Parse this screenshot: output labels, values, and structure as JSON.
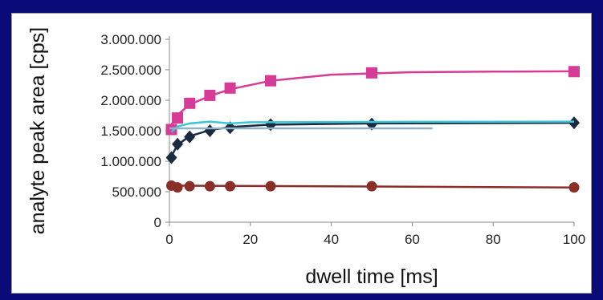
{
  "chart_data": {
    "type": "scatter",
    "title": "",
    "xlabel": "dwell time [ms]",
    "ylabel": "analyte peak area [cps]",
    "xlim": [
      0,
      100
    ],
    "ylim": [
      0,
      3000000
    ],
    "x_ticks": [
      0,
      20,
      40,
      60,
      80,
      100
    ],
    "x_tick_labels": [
      "0",
      "20",
      "40",
      "60",
      "80",
      "100"
    ],
    "y_ticks": [
      0,
      500000,
      1000000,
      1500000,
      2000000,
      2500000,
      3000000
    ],
    "y_tick_labels": [
      "0",
      "500.000",
      "1.000.000",
      "1.500.000",
      "2.000.000",
      "2.500.000",
      "3.000.000"
    ],
    "grid": false,
    "legend": "none",
    "series": [
      {
        "marker": "square",
        "color": "#d63b97",
        "x": [
          0.5,
          2,
          5,
          10,
          15,
          25,
          50,
          100
        ],
        "y": [
          1520000,
          1710000,
          1950000,
          2080000,
          2200000,
          2320000,
          2450000,
          2470000
        ],
        "fit": [
          [
            0.5,
            1600000
          ],
          [
            2,
            1760000
          ],
          [
            5,
            1930000
          ],
          [
            10,
            2070000
          ],
          [
            15,
            2180000
          ],
          [
            25,
            2320000
          ],
          [
            40,
            2420000
          ],
          [
            60,
            2460000
          ],
          [
            80,
            2470000
          ],
          [
            100,
            2475000
          ]
        ]
      },
      {
        "marker": "diamond",
        "color": "#1a2a40",
        "x": [
          0.5,
          2,
          5,
          10,
          15,
          25,
          50,
          100
        ],
        "y": [
          1060000,
          1280000,
          1400000,
          1500000,
          1550000,
          1600000,
          1610000,
          1630000
        ],
        "fit": [
          [
            0.5,
            1080000
          ],
          [
            2,
            1270000
          ],
          [
            5,
            1410000
          ],
          [
            10,
            1510000
          ],
          [
            15,
            1560000
          ],
          [
            25,
            1600000
          ],
          [
            50,
            1620000
          ],
          [
            100,
            1630000
          ]
        ]
      },
      {
        "marker": "none",
        "color": "#3cc7d8",
        "x": [
          0.5,
          2,
          5,
          10,
          15,
          25,
          50,
          100
        ],
        "y": [
          1480000,
          1560000,
          1610000,
          1640000,
          1600000,
          1640000,
          1640000,
          1650000
        ],
        "fit": [
          [
            0.5,
            1480000
          ],
          [
            2,
            1570000
          ],
          [
            5,
            1620000
          ],
          [
            10,
            1650000
          ],
          [
            15,
            1620000
          ],
          [
            20,
            1640000
          ],
          [
            50,
            1645000
          ],
          [
            100,
            1650000
          ]
        ]
      },
      {
        "marker": "none",
        "color": "#8fb3c4",
        "x": [
          0,
          65
        ],
        "y": [
          1540000,
          1540000
        ],
        "fit": [
          [
            0,
            1540000
          ],
          [
            65,
            1540000
          ]
        ]
      },
      {
        "marker": "circle",
        "color": "#8a2e28",
        "x": [
          0.5,
          2,
          5,
          10,
          15,
          25,
          50,
          100
        ],
        "y": [
          600000,
          570000,
          590000,
          590000,
          590000,
          590000,
          590000,
          570000
        ],
        "fit": [
          [
            0.5,
            600000
          ],
          [
            100,
            570000
          ]
        ]
      }
    ]
  }
}
